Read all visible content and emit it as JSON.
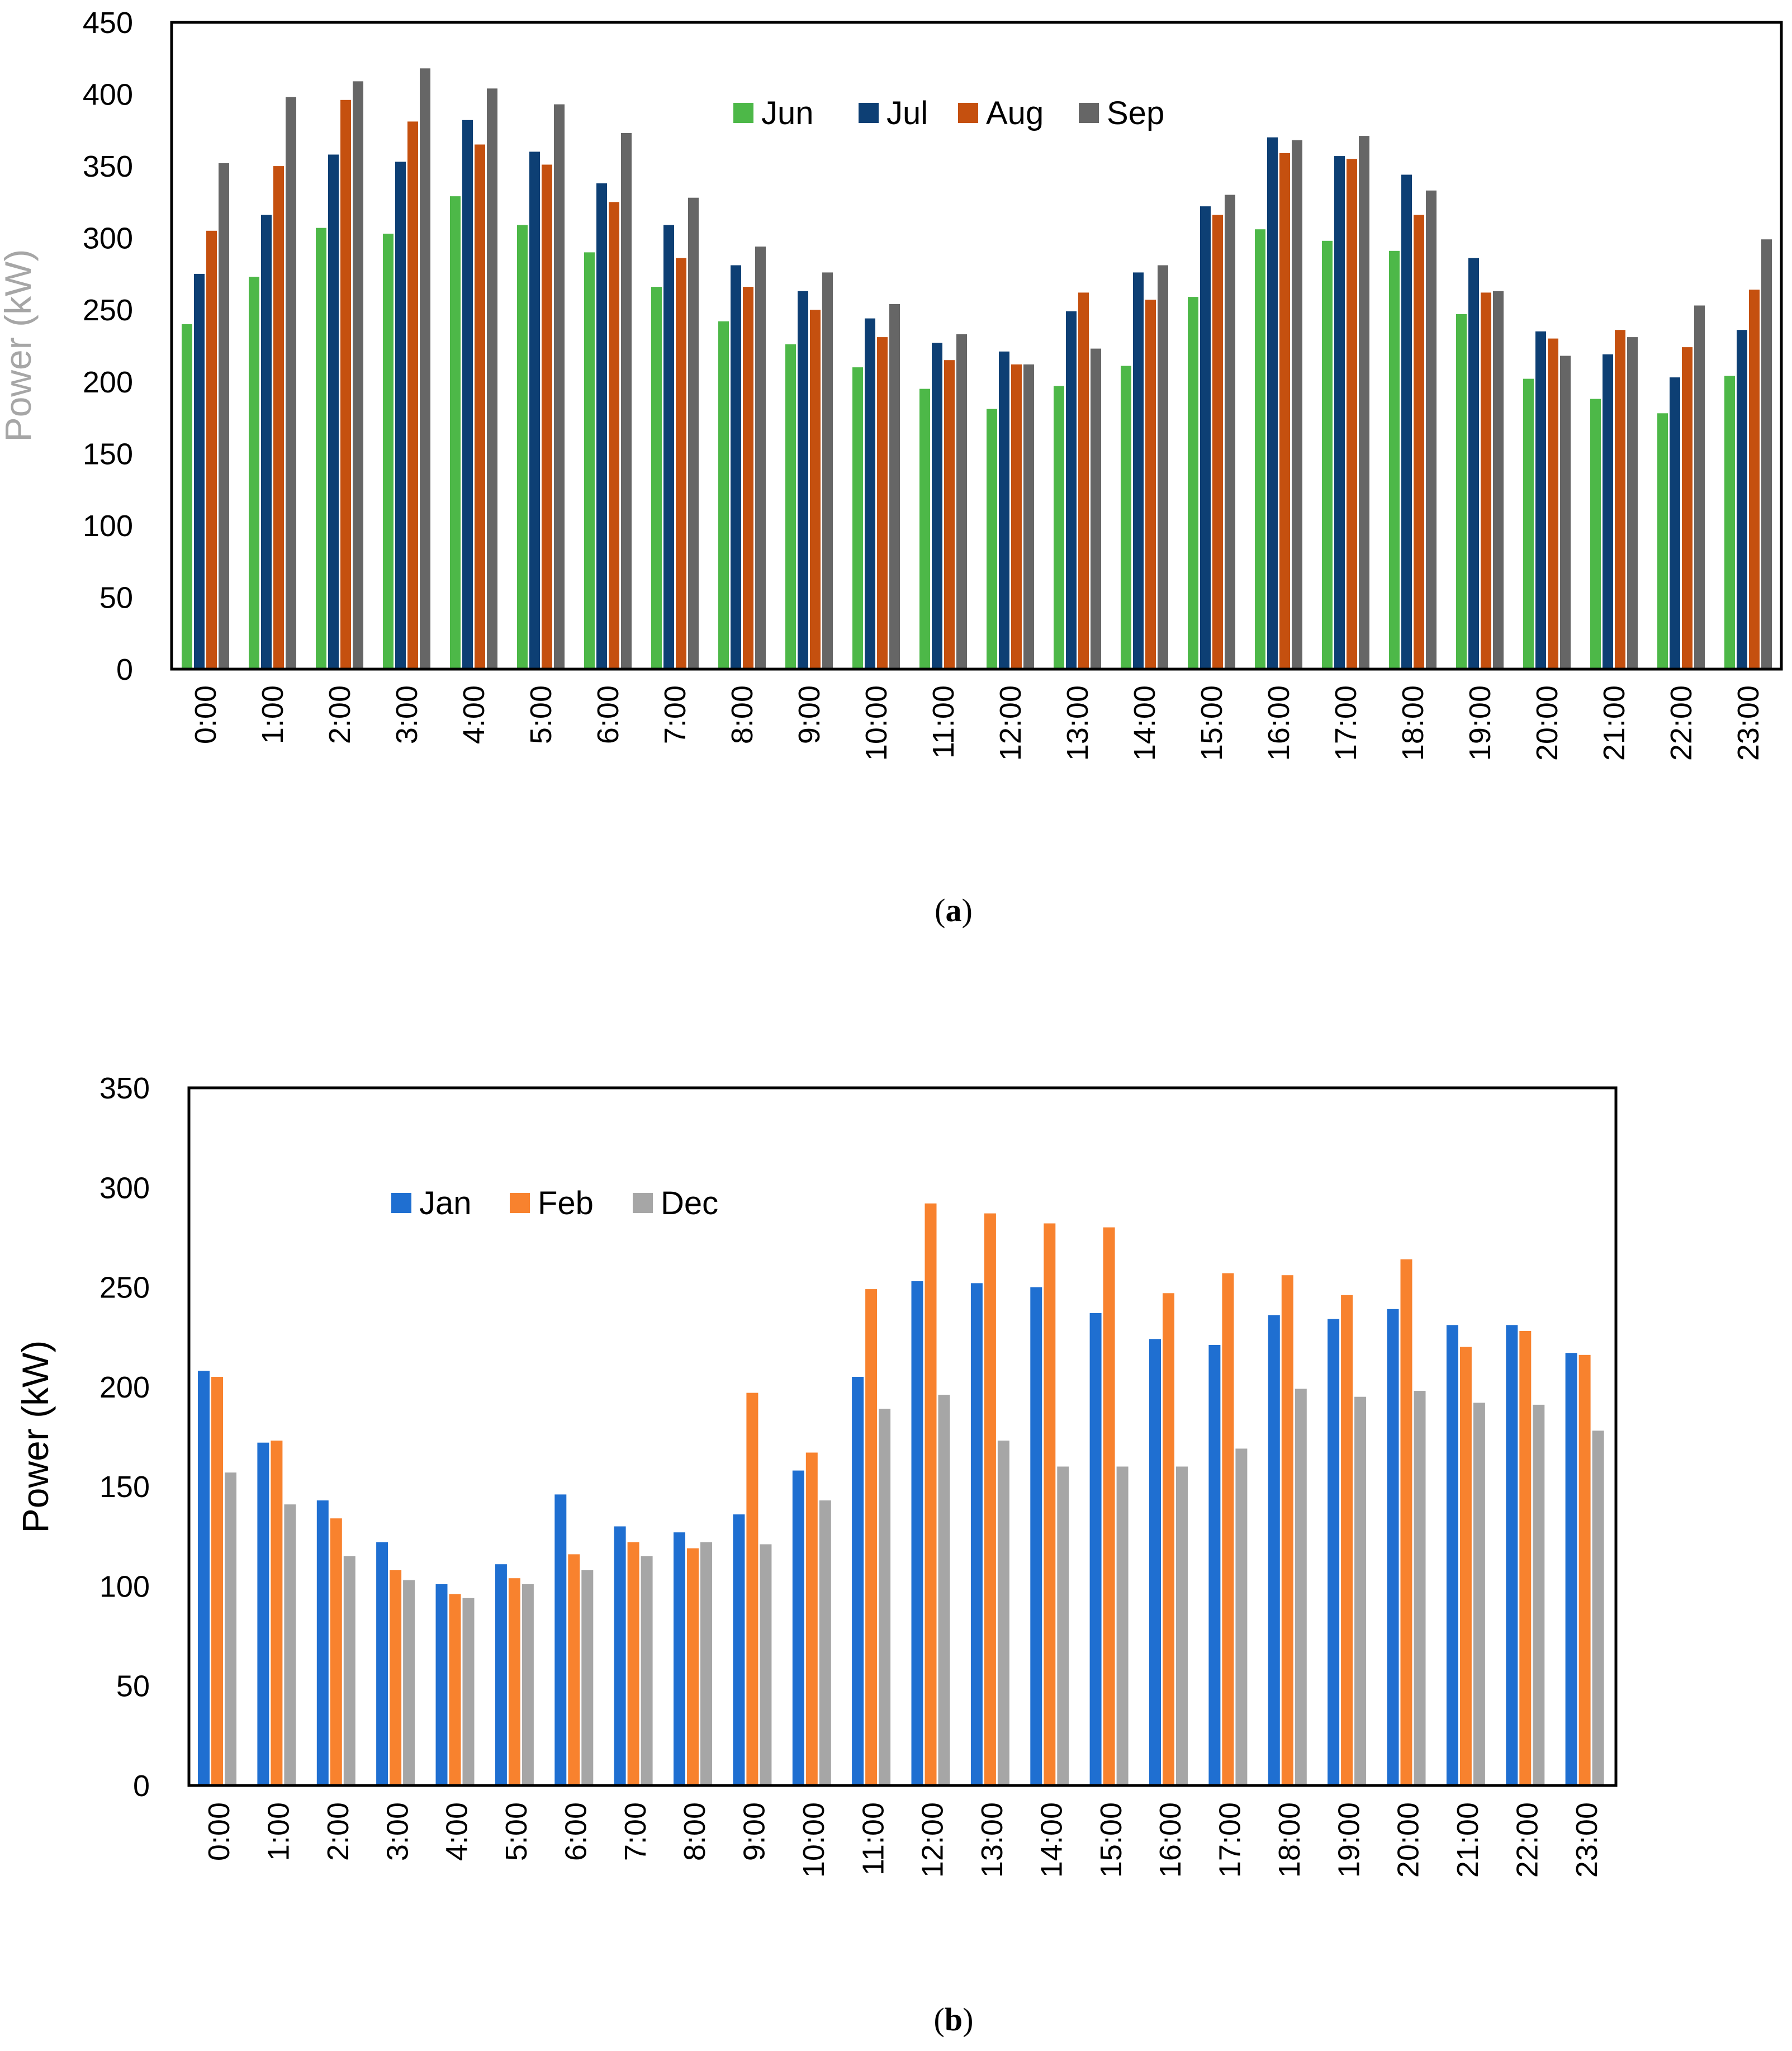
{
  "chart_data": [
    {
      "type": "bar",
      "caption_letter": "a",
      "title": "",
      "xlabel": "",
      "ylabel": "Power (kW)",
      "ylim": [
        0,
        450
      ],
      "ytick_step": 50,
      "yticks": [
        "0",
        "50",
        "100",
        "150",
        "200",
        "250",
        "300",
        "350",
        "400",
        "450"
      ],
      "legend_position": "top-center",
      "categories": [
        "0:00",
        "1:00",
        "2:00",
        "3:00",
        "4:00",
        "5:00",
        "6:00",
        "7:00",
        "8:00",
        "9:00",
        "10:00",
        "11:00",
        "12:00",
        "13:00",
        "14:00",
        "15:00",
        "16:00",
        "17:00",
        "18:00",
        "19:00",
        "20:00",
        "21:00",
        "22:00",
        "23:00"
      ],
      "series": [
        {
          "name": "Jun",
          "color": "#4db848",
          "values": [
            240,
            273,
            307,
            303,
            329,
            309,
            290,
            266,
            242,
            226,
            210,
            195,
            181,
            197,
            211,
            259,
            306,
            298,
            291,
            247,
            202,
            188,
            178,
            204
          ]
        },
        {
          "name": "Jul",
          "color": "#0d3f74",
          "values": [
            275,
            316,
            358,
            353,
            382,
            360,
            338,
            309,
            281,
            263,
            244,
            227,
            221,
            249,
            276,
            322,
            370,
            357,
            344,
            286,
            235,
            219,
            203,
            236
          ]
        },
        {
          "name": "Aug",
          "color": "#c5500f",
          "values": [
            305,
            350,
            396,
            381,
            365,
            351,
            325,
            286,
            266,
            250,
            231,
            215,
            212,
            262,
            257,
            316,
            359,
            355,
            316,
            262,
            230,
            236,
            224,
            264
          ]
        },
        {
          "name": "Sep",
          "color": "#666666",
          "values": [
            352,
            398,
            409,
            418,
            404,
            393,
            373,
            328,
            294,
            276,
            254,
            233,
            212,
            223,
            281,
            330,
            368,
            371,
            333,
            263,
            218,
            231,
            253,
            299
          ]
        }
      ]
    },
    {
      "type": "bar",
      "caption_letter": "b",
      "title": "",
      "xlabel": "",
      "ylabel": "Power (kW)",
      "ylim": [
        0,
        350
      ],
      "ytick_step": 50,
      "yticks": [
        "0",
        "50",
        "100",
        "150",
        "200",
        "250",
        "300",
        "350"
      ],
      "legend_position": "top-left",
      "categories": [
        "0:00",
        "1:00",
        "2:00",
        "3:00",
        "4:00",
        "5:00",
        "6:00",
        "7:00",
        "8:00",
        "9:00",
        "10:00",
        "11:00",
        "12:00",
        "13:00",
        "14:00",
        "15:00",
        "16:00",
        "17:00",
        "18:00",
        "19:00",
        "20:00",
        "21:00",
        "22:00",
        "23:00"
      ],
      "series": [
        {
          "name": "Jan",
          "color": "#1f6fd1",
          "values": [
            208,
            172,
            143,
            122,
            101,
            111,
            146,
            130,
            127,
            136,
            158,
            205,
            253,
            252,
            250,
            237,
            224,
            221,
            236,
            234,
            239,
            231,
            231,
            217
          ]
        },
        {
          "name": "Feb",
          "color": "#f8822e",
          "values": [
            205,
            173,
            134,
            108,
            96,
            104,
            116,
            122,
            119,
            197,
            167,
            249,
            292,
            287,
            282,
            280,
            247,
            257,
            256,
            246,
            264,
            220,
            228,
            216
          ]
        },
        {
          "name": "Dec",
          "color": "#a6a6a6",
          "values": [
            157,
            141,
            115,
            103,
            94,
            101,
            108,
            115,
            122,
            121,
            143,
            189,
            196,
            173,
            160,
            160,
            160,
            169,
            199,
            195,
            198,
            192,
            191,
            178
          ]
        }
      ]
    }
  ]
}
